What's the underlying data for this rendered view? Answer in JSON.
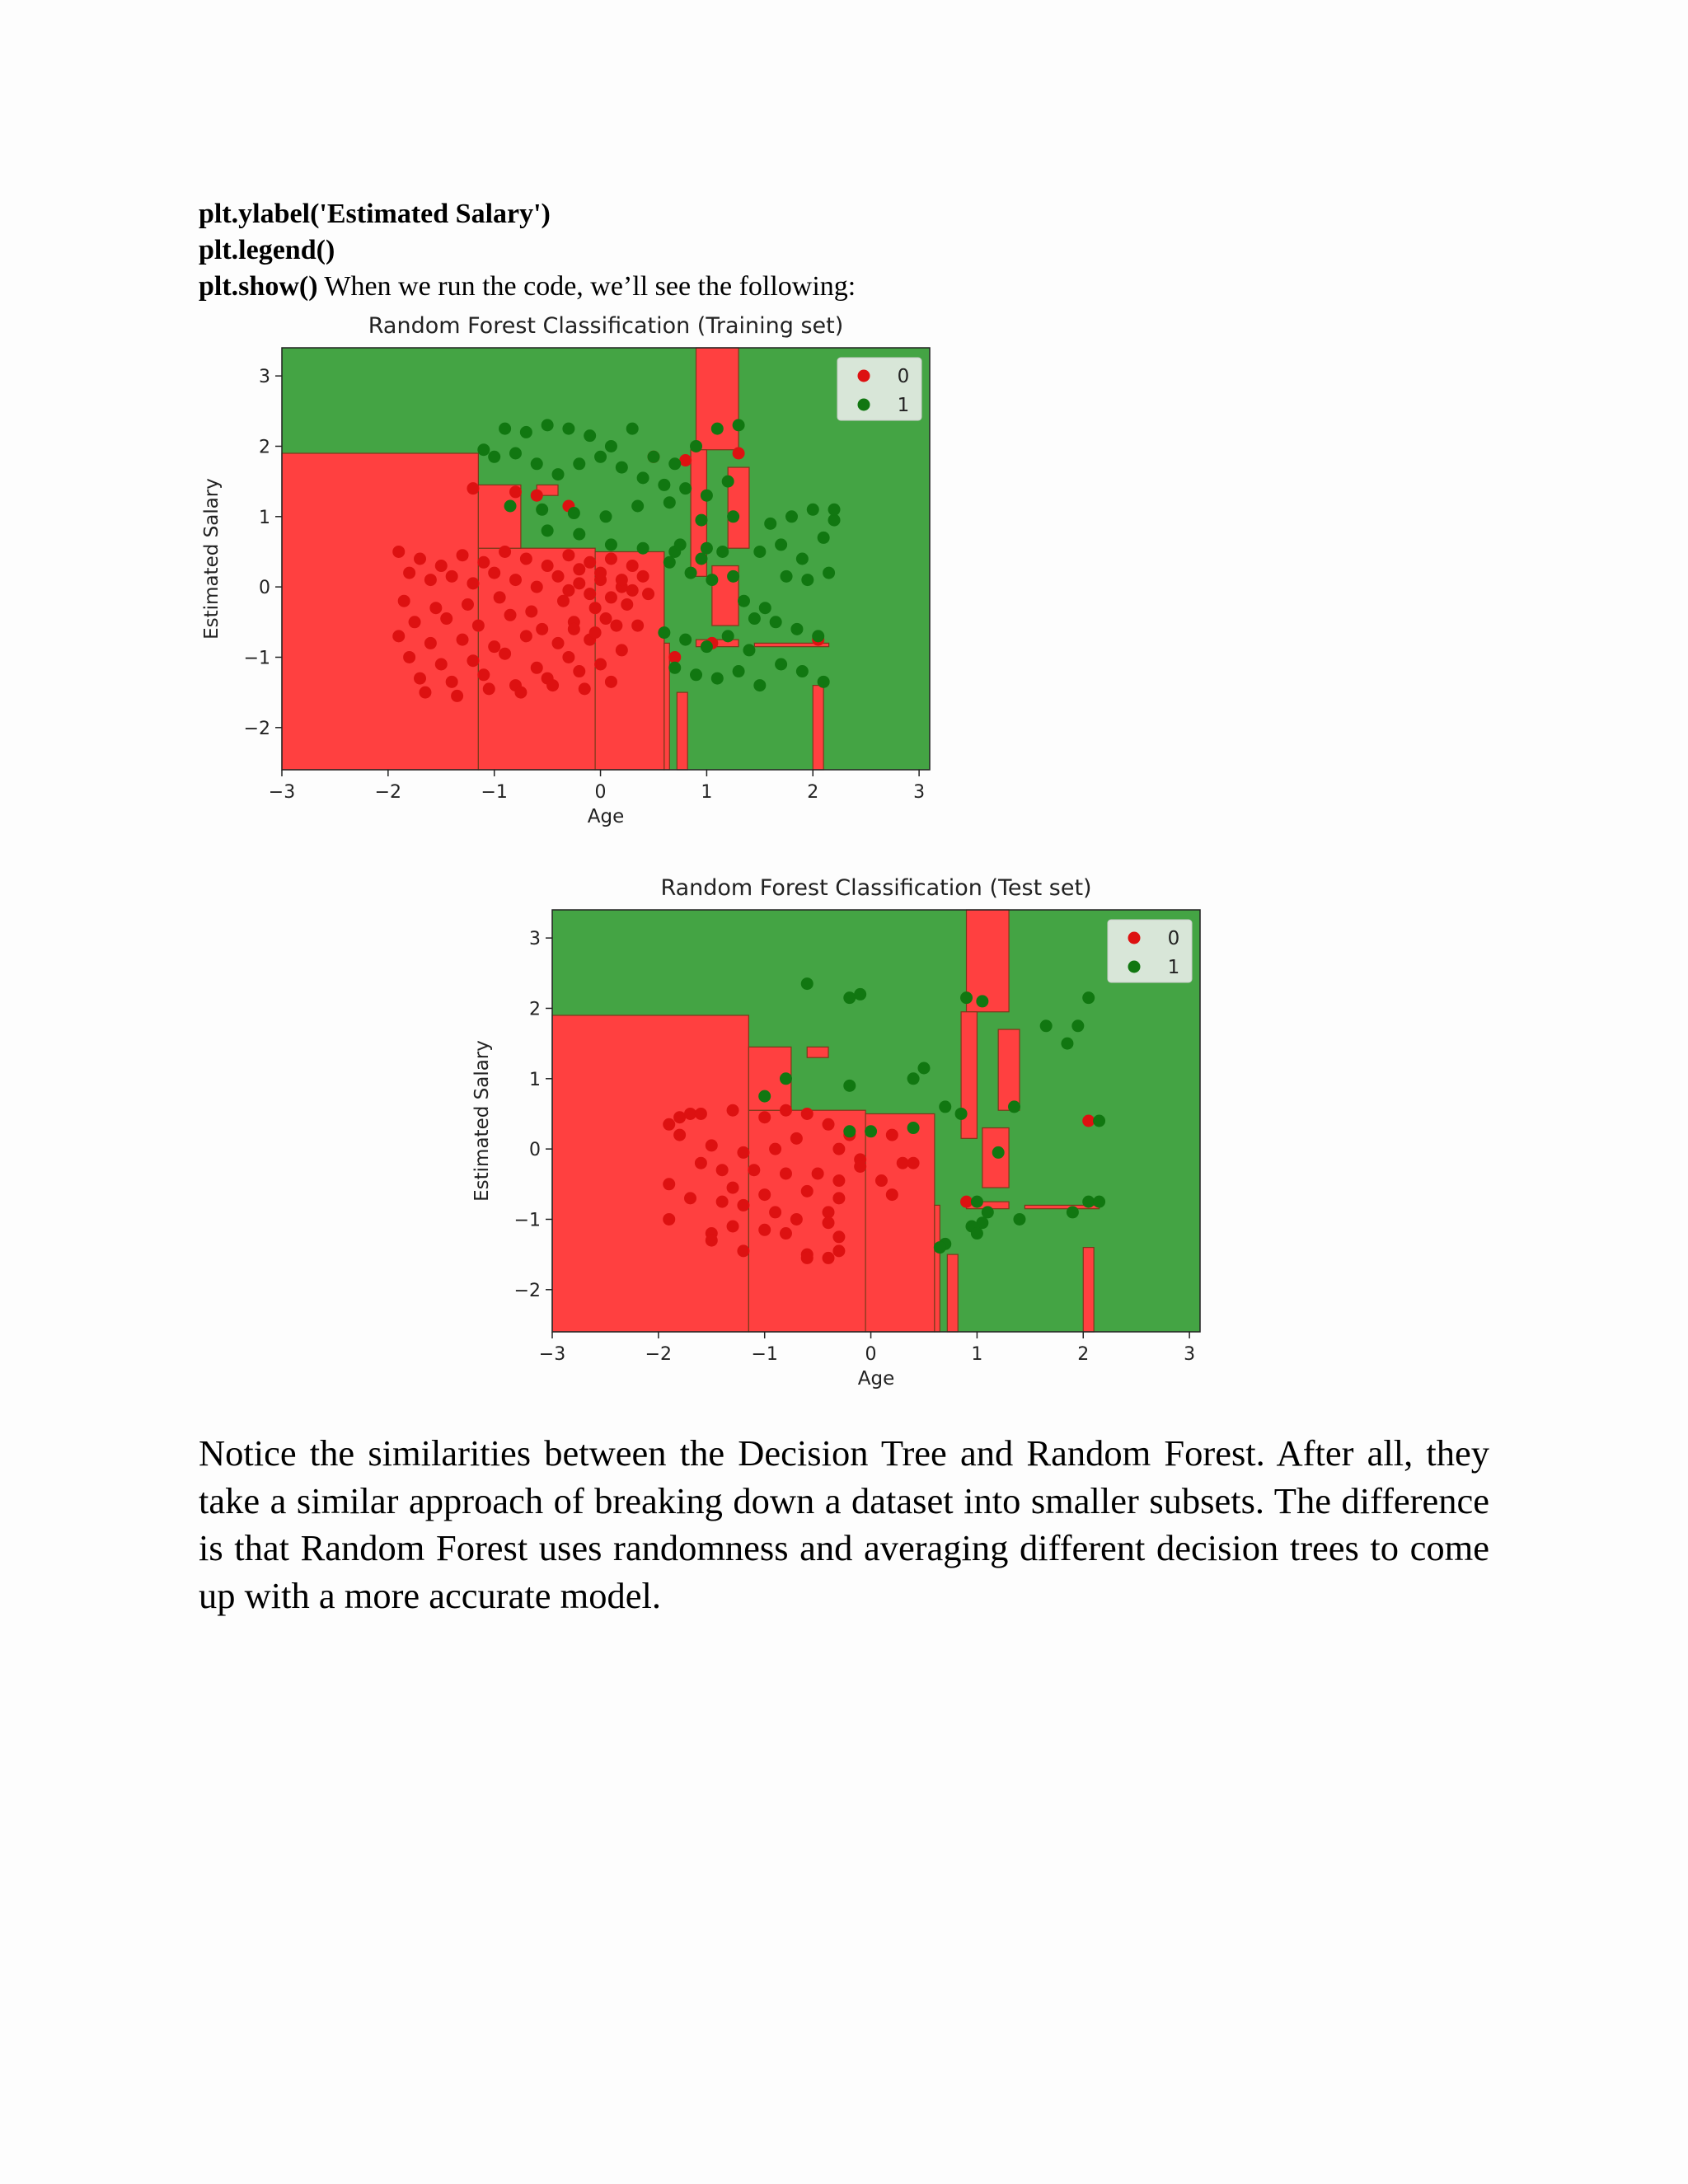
{
  "code": {
    "line1": "plt.ylabel('Estimated Salary')",
    "line2": "plt.legend()",
    "line3_code": "plt.show()",
    "line3_text": " When we run the code, we’ll see the following:"
  },
  "paragraph": "Notice the similarities between the Decision Tree and Random Forest. After all, they take a similar approach of breaking down a dataset into smaller subsets. The difference is that Random Forest uses randomness and averaging different decision trees to come up with a more accurate model.",
  "colors": {
    "class0_region": "#ff4040",
    "class1_region": "#44a444",
    "class0_point": "#dd1111",
    "class1_point": "#117711",
    "boundary": "#7a3a1a"
  },
  "chart_data": [
    {
      "type": "scatter",
      "title": "Random Forest Classification (Training set)",
      "xlabel": "Age",
      "ylabel": "Estimated Salary",
      "xlim": [
        -3,
        3.1
      ],
      "ylim": [
        -2.6,
        3.4
      ],
      "xticks": [
        "−3",
        "−2",
        "−1",
        "0",
        "1",
        "2",
        "3"
      ],
      "yticks": [
        "−2",
        "−1",
        "0",
        "1",
        "2",
        "3"
      ],
      "legend": {
        "position": "top-right",
        "entries": [
          "0",
          "1"
        ]
      },
      "regions": [
        {
          "class": 0,
          "x": [
            -3.0,
            -1.15
          ],
          "y": [
            -2.6,
            1.9
          ]
        },
        {
          "class": 0,
          "x": [
            -1.15,
            -0.05
          ],
          "y": [
            -2.6,
            0.55
          ]
        },
        {
          "class": 0,
          "x": [
            -0.05,
            0.6
          ],
          "y": [
            -2.6,
            0.5
          ]
        },
        {
          "class": 0,
          "x": [
            0.6,
            0.65
          ],
          "y": [
            -2.6,
            -0.8
          ]
        },
        {
          "class": 0,
          "x": [
            -1.15,
            -0.75
          ],
          "y": [
            0.55,
            1.45
          ]
        },
        {
          "class": 0,
          "x": [
            -0.6,
            -0.4
          ],
          "y": [
            1.3,
            1.45
          ]
        },
        {
          "class": 0,
          "x": [
            0.9,
            1.3
          ],
          "y": [
            1.95,
            3.4
          ]
        },
        {
          "class": 0,
          "x": [
            0.85,
            1.0
          ],
          "y": [
            0.15,
            1.95
          ]
        },
        {
          "class": 0,
          "x": [
            1.2,
            1.4
          ],
          "y": [
            0.55,
            1.7
          ]
        },
        {
          "class": 0,
          "x": [
            1.05,
            1.3
          ],
          "y": [
            -0.55,
            0.3
          ]
        },
        {
          "class": 0,
          "x": [
            0.72,
            0.82
          ],
          "y": [
            -2.6,
            -1.5
          ]
        },
        {
          "class": 0,
          "x": [
            2.0,
            2.1
          ],
          "y": [
            -2.6,
            -1.4
          ]
        },
        {
          "class": 0,
          "x": [
            0.9,
            1.3
          ],
          "y": [
            -0.85,
            -0.75
          ]
        },
        {
          "class": 0,
          "x": [
            1.45,
            2.15
          ],
          "y": [
            -0.85,
            -0.8
          ]
        }
      ],
      "series": [
        {
          "name": "0",
          "x": [
            -1.9,
            -1.7,
            -1.5,
            -1.3,
            -1.1,
            -0.9,
            -0.7,
            -0.5,
            -0.3,
            -0.1,
            0.1,
            0.3,
            -1.8,
            -1.6,
            -1.4,
            -1.2,
            -1.0,
            -0.8,
            -0.6,
            -0.4,
            -0.2,
            0.0,
            0.2,
            0.4,
            -1.85,
            -1.55,
            -1.25,
            -0.95,
            -0.65,
            -0.35,
            -0.05,
            0.25,
            0.45,
            -1.75,
            -1.45,
            -1.15,
            -0.85,
            -0.55,
            -0.25,
            0.05,
            0.35,
            -1.9,
            -1.6,
            -1.3,
            -1.0,
            -0.7,
            -0.4,
            -0.1,
            0.2,
            -1.8,
            -1.5,
            -1.2,
            -0.9,
            -0.6,
            -0.3,
            0.0,
            -1.7,
            -1.4,
            -1.1,
            -0.8,
            -0.5,
            -0.2,
            0.1,
            -1.65,
            -1.35,
            -1.05,
            -0.75,
            -0.45,
            -0.15,
            -0.2,
            0.0,
            0.2,
            -0.3,
            -0.1,
            0.1,
            0.3,
            -0.25,
            -0.05,
            0.15,
            -1.2,
            -0.8,
            -0.6,
            -0.3,
            0.5,
            0.8,
            1.3,
            2.05,
            0.7,
            1.05
          ],
          "y": [
            0.5,
            0.4,
            0.3,
            0.45,
            0.35,
            0.5,
            0.4,
            0.3,
            0.45,
            0.35,
            0.4,
            0.3,
            0.2,
            0.1,
            0.15,
            0.05,
            0.2,
            0.1,
            0.0,
            0.15,
            0.05,
            0.1,
            0.0,
            0.15,
            -0.2,
            -0.3,
            -0.25,
            -0.15,
            -0.35,
            -0.2,
            -0.3,
            -0.25,
            -0.1,
            -0.5,
            -0.45,
            -0.55,
            -0.4,
            -0.6,
            -0.5,
            -0.45,
            -0.55,
            -0.7,
            -0.8,
            -0.75,
            -0.85,
            -0.7,
            -0.8,
            -0.75,
            -0.9,
            -1.0,
            -1.1,
            -1.05,
            -0.95,
            -1.15,
            -1.0,
            -1.1,
            -1.3,
            -1.35,
            -1.25,
            -1.4,
            -1.3,
            -1.2,
            -1.35,
            -1.5,
            -1.55,
            -1.45,
            -1.5,
            -1.4,
            -1.45,
            0.25,
            0.2,
            0.1,
            -0.05,
            -0.1,
            -0.15,
            -0.05,
            -0.6,
            -0.65,
            -0.55,
            1.4,
            1.35,
            1.3,
            1.15,
            1.85,
            1.8,
            1.9,
            -0.75,
            -1.0,
            -0.8
          ]
        },
        {
          "name": "1",
          "x": [
            -1.1,
            -0.9,
            -0.7,
            -0.5,
            -0.3,
            -0.1,
            0.1,
            0.3,
            0.5,
            0.7,
            0.9,
            1.1,
            1.3,
            -1.0,
            -0.8,
            -0.6,
            -0.4,
            -0.2,
            0.0,
            0.2,
            0.4,
            0.6,
            0.8,
            1.0,
            1.2,
            -0.85,
            -0.55,
            -0.25,
            0.05,
            0.35,
            0.65,
            0.95,
            1.25,
            -0.5,
            -0.2,
            0.1,
            0.4,
            0.7,
            1.0,
            0.65,
            0.85,
            1.05,
            1.25,
            0.6,
            0.8,
            1.0,
            1.2,
            1.4,
            0.7,
            0.9,
            1.1,
            1.3,
            1.5,
            1.7,
            1.9,
            2.1,
            1.35,
            1.55,
            1.75,
            1.95,
            2.15,
            1.5,
            1.7,
            1.9,
            2.1,
            1.6,
            1.8,
            2.0,
            2.2,
            1.45,
            1.65,
            1.85,
            2.05,
            0.75,
            0.95,
            1.15,
            2.2
          ],
          "y": [
            1.95,
            2.25,
            2.2,
            2.3,
            2.25,
            2.15,
            2.0,
            2.25,
            1.85,
            1.75,
            2.0,
            2.25,
            2.3,
            1.85,
            1.9,
            1.75,
            1.6,
            1.75,
            1.85,
            1.7,
            1.55,
            1.45,
            1.4,
            1.3,
            1.5,
            1.15,
            1.1,
            1.05,
            1.0,
            1.15,
            1.2,
            0.95,
            1.0,
            0.8,
            0.75,
            0.6,
            0.55,
            0.5,
            0.55,
            0.35,
            0.2,
            0.1,
            0.15,
            -0.65,
            -0.75,
            -0.85,
            -0.7,
            -0.9,
            -1.15,
            -1.25,
            -1.3,
            -1.2,
            -1.4,
            -1.1,
            -1.2,
            -1.35,
            -0.2,
            -0.3,
            0.15,
            0.1,
            0.2,
            0.5,
            0.6,
            0.4,
            0.7,
            0.9,
            1.0,
            1.1,
            0.95,
            -0.45,
            -0.5,
            -0.6,
            -0.7,
            0.6,
            0.4,
            0.5,
            1.1
          ]
        }
      ]
    },
    {
      "type": "scatter",
      "title": "Random Forest Classification (Test set)",
      "xlabel": "Age",
      "ylabel": "Estimated Salary",
      "xlim": [
        -3,
        3.1
      ],
      "ylim": [
        -2.6,
        3.4
      ],
      "xticks": [
        "−3",
        "−2",
        "−1",
        "0",
        "1",
        "2",
        "3"
      ],
      "yticks": [
        "−2",
        "−1",
        "0",
        "1",
        "2",
        "3"
      ],
      "legend": {
        "position": "top-right",
        "entries": [
          "0",
          "1"
        ]
      },
      "regions": [
        {
          "class": 0,
          "x": [
            -3.0,
            -1.15
          ],
          "y": [
            -2.6,
            1.9
          ]
        },
        {
          "class": 0,
          "x": [
            -1.15,
            -0.05
          ],
          "y": [
            -2.6,
            0.55
          ]
        },
        {
          "class": 0,
          "x": [
            -0.05,
            0.6
          ],
          "y": [
            -2.6,
            0.5
          ]
        },
        {
          "class": 0,
          "x": [
            0.6,
            0.65
          ],
          "y": [
            -2.6,
            -0.8
          ]
        },
        {
          "class": 0,
          "x": [
            -1.15,
            -0.75
          ],
          "y": [
            0.55,
            1.45
          ]
        },
        {
          "class": 0,
          "x": [
            -0.6,
            -0.4
          ],
          "y": [
            1.3,
            1.45
          ]
        },
        {
          "class": 0,
          "x": [
            0.9,
            1.3
          ],
          "y": [
            1.95,
            3.4
          ]
        },
        {
          "class": 0,
          "x": [
            0.85,
            1.0
          ],
          "y": [
            0.15,
            1.95
          ]
        },
        {
          "class": 0,
          "x": [
            1.2,
            1.4
          ],
          "y": [
            0.55,
            1.7
          ]
        },
        {
          "class": 0,
          "x": [
            1.05,
            1.3
          ],
          "y": [
            -0.55,
            0.3
          ]
        },
        {
          "class": 0,
          "x": [
            0.72,
            0.82
          ],
          "y": [
            -2.6,
            -1.5
          ]
        },
        {
          "class": 0,
          "x": [
            2.0,
            2.1
          ],
          "y": [
            -2.6,
            -1.4
          ]
        },
        {
          "class": 0,
          "x": [
            0.9,
            1.3
          ],
          "y": [
            -0.85,
            -0.75
          ]
        },
        {
          "class": 0,
          "x": [
            1.45,
            2.15
          ],
          "y": [
            -0.85,
            -0.8
          ]
        }
      ],
      "series": [
        {
          "name": "0",
          "x": [
            -1.9,
            -1.8,
            -1.7,
            -1.6,
            -1.3,
            -1.0,
            -0.8,
            -0.6,
            -0.4,
            -0.2,
            0.2,
            -1.8,
            -1.5,
            -1.2,
            -0.9,
            -0.7,
            -0.3,
            -0.1,
            0.3,
            -1.6,
            -1.4,
            -1.1,
            -0.8,
            -0.5,
            -0.3,
            -0.1,
            0.1,
            0.4,
            -1.9,
            -1.3,
            -1.0,
            -0.6,
            -0.3,
            0.2,
            -1.7,
            -1.4,
            -1.2,
            -0.9,
            -0.7,
            -0.4,
            -1.9,
            -1.5,
            -1.3,
            -1.0,
            -0.8,
            -0.4,
            -0.3,
            -1.5,
            -1.2,
            -0.6,
            -0.3,
            -0.6,
            -0.4,
            0.9,
            2.05
          ],
          "y": [
            0.35,
            0.45,
            0.5,
            0.5,
            0.55,
            0.45,
            0.55,
            0.5,
            0.35,
            0.2,
            0.2,
            0.2,
            0.05,
            -0.05,
            0.0,
            0.15,
            0.0,
            -0.15,
            -0.2,
            -0.2,
            -0.3,
            -0.3,
            -0.35,
            -0.35,
            -0.45,
            -0.25,
            -0.45,
            -0.2,
            -0.5,
            -0.55,
            -0.65,
            -0.6,
            -0.7,
            -0.65,
            -0.7,
            -0.75,
            -0.8,
            -0.9,
            -1.0,
            -0.9,
            -1.0,
            -1.2,
            -1.1,
            -1.15,
            -1.2,
            -1.05,
            -1.25,
            -1.3,
            -1.45,
            -1.5,
            -1.45,
            -1.55,
            -1.55,
            -0.75,
            0.4
          ]
        },
        {
          "name": "1",
          "x": [
            -0.6,
            -0.2,
            -0.1,
            -1.0,
            -0.8,
            -0.2,
            0.4,
            0.5,
            0.9,
            1.05,
            1.35,
            1.65,
            1.85,
            1.95,
            2.05,
            2.15,
            -0.2,
            0.0,
            0.4,
            0.7,
            0.85,
            1.0,
            1.1,
            1.4,
            1.9,
            2.05,
            2.15,
            1.2,
            1.05,
            0.95,
            1.0,
            0.7,
            0.65
          ],
          "y": [
            2.35,
            2.15,
            2.2,
            0.75,
            1.0,
            0.9,
            1.0,
            1.15,
            2.15,
            2.1,
            0.6,
            1.75,
            1.5,
            1.75,
            2.15,
            0.4,
            0.25,
            0.25,
            0.3,
            0.6,
            0.5,
            -0.75,
            -0.9,
            -1.0,
            -0.9,
            -0.75,
            -0.75,
            -0.05,
            -1.05,
            -1.1,
            -1.2,
            -1.35,
            -1.4
          ]
        }
      ]
    }
  ]
}
